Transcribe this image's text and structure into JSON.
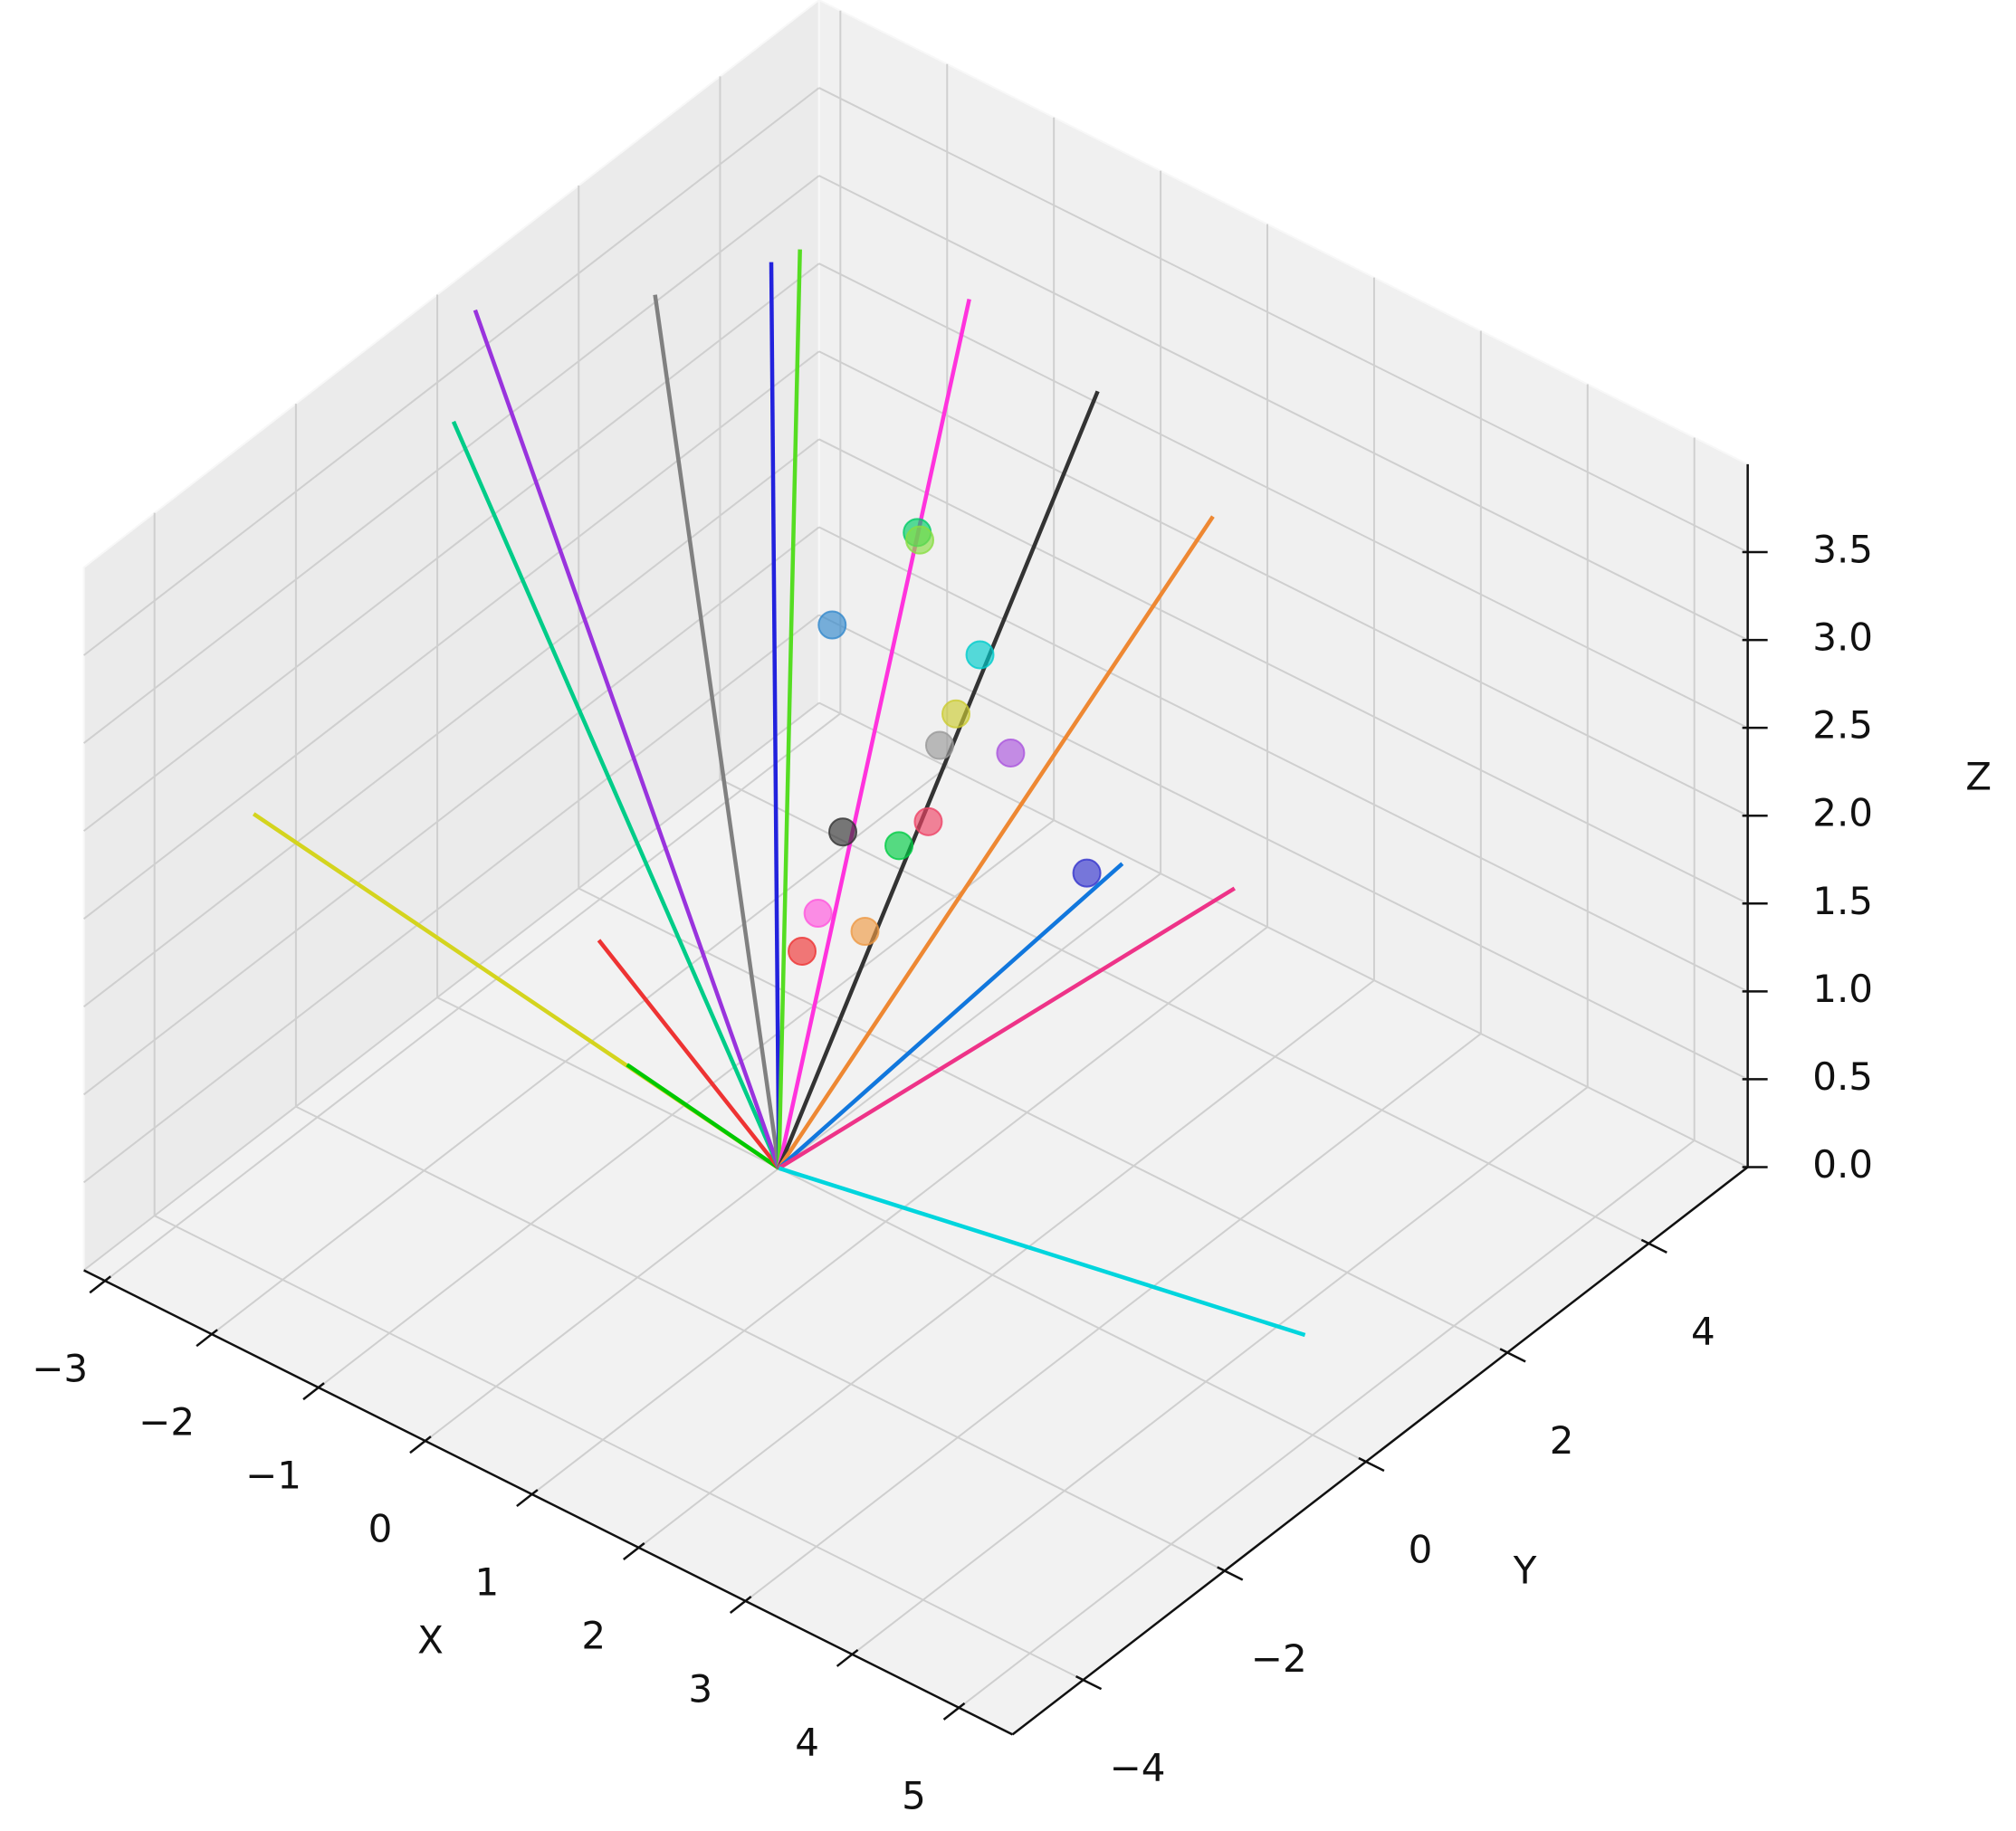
{
  "chart_data": {
    "type": "line3d",
    "xlabel": "X",
    "ylabel": "Y",
    "zlabel": "Z",
    "xlim": [
      -3.2,
      5.5
    ],
    "ylim": [
      -5,
      5.4
    ],
    "zlim": [
      0,
      4
    ],
    "xticks": [
      {
        "value": -3,
        "label": "−3"
      },
      {
        "value": -2,
        "label": "−2"
      },
      {
        "value": -1,
        "label": "−1"
      },
      0,
      1,
      2,
      3,
      4,
      5
    ],
    "yticks": [
      {
        "value": -4,
        "label": "−4"
      },
      {
        "value": -2,
        "label": "−2"
      },
      0,
      2,
      4
    ],
    "zticks": [
      {
        "value": 0,
        "label": "0.0"
      },
      0.5,
      {
        "value": 1,
        "label": "1.0"
      },
      1.5,
      {
        "value": 2,
        "label": "2.0"
      },
      2.5,
      {
        "value": 3,
        "label": "3.0"
      },
      3.5
    ],
    "grid": true,
    "lines": [
      {
        "color": "#d4d41e",
        "x": [
          0,
          -2.49
        ],
        "y": [
          0,
          -3.67
        ],
        "z": [
          0,
          2.4
        ]
      },
      {
        "color": "#00c800",
        "x": [
          0,
          -0.72
        ],
        "y": [
          0,
          -1.06
        ],
        "z": [
          0,
          0.7
        ]
      },
      {
        "color": "#ee3333",
        "x": [
          0,
          -1.15
        ],
        "y": [
          0,
          -0.81
        ],
        "z": [
          0,
          1.2
        ]
      },
      {
        "color": "#00cc88",
        "x": [
          0,
          -2.69
        ],
        "y": [
          0,
          -0.54
        ],
        "z": [
          0,
          3.6
        ]
      },
      {
        "color": "#9933dd",
        "x": [
          0,
          -3.13
        ],
        "y": [
          0,
          0.43
        ],
        "z": [
          0,
          3.8
        ]
      },
      {
        "color": "#808080",
        "x": [
          0,
          -2.22
        ],
        "y": [
          0,
          1.6
        ],
        "z": [
          0,
          3.8
        ]
      },
      {
        "color": "#2222dd",
        "x": [
          0,
          -1.8
        ],
        "y": [
          0,
          2.61
        ],
        "z": [
          0,
          3.8
        ]
      },
      {
        "color": "#55dd22",
        "x": [
          0,
          -1.73
        ],
        "y": [
          0,
          2.91
        ],
        "z": [
          0,
          3.8
        ]
      },
      {
        "color": "#ff33dd",
        "x": [
          0,
          -0.66
        ],
        "y": [
          0,
          3.69
        ],
        "z": [
          0,
          3.6
        ]
      },
      {
        "color": "#333333",
        "x": [
          0,
          0.49
        ],
        "y": [
          0,
          3.77
        ],
        "z": [
          0,
          3.4
        ]
      },
      {
        "color": "#ee8833",
        "x": [
          0,
          1.55
        ],
        "y": [
          0,
          3.8
        ],
        "z": [
          0,
          3.0
        ]
      },
      {
        "color": "#1177dd",
        "x": [
          0,
          1.78
        ],
        "y": [
          0,
          2.17
        ],
        "z": [
          0,
          1.6
        ]
      },
      {
        "color": "#ee3388",
        "x": [
          0,
          2.6
        ],
        "y": [
          0,
          2.52
        ],
        "z": [
          0,
          1.6
        ]
      },
      {
        "color": "#00d5dd",
        "x": [
          0,
          4.22
        ],
        "y": [
          0,
          1.07
        ],
        "z": [
          0,
          0
        ]
      }
    ],
    "points": {
      "x": [
        -1.11,
        -0.79,
        -0.72,
        -0.05,
        -0.01,
        -0.13,
        0.33,
        -0.15,
        -0.56,
        -0.14,
        1.13,
        -0.62,
        -0.22,
        -0.69
      ],
      "y": [
        2.43,
        3.15,
        3.08,
        2.92,
        2.52,
        2.47,
        2.78,
        2.34,
        1.75,
        1.91,
        2.65,
        1.49,
        1.55,
        1.37
      ],
      "z": [
        2.0,
        2.4,
        2.4,
        2.0,
        1.8,
        1.6,
        1.6,
        1.2,
        1.2,
        1.2,
        1.2,
        0.8,
        0.8,
        0.6
      ],
      "colors": [
        "#3388cc",
        "#00cc66",
        "#88dd44",
        "#00cccc",
        "#cccc33",
        "#999999",
        "#aa55dd",
        "#ee4466",
        "#333333",
        "#00cc44",
        "#3333cc",
        "#ff55dd",
        "#ee9944",
        "#ee3333"
      ]
    }
  }
}
